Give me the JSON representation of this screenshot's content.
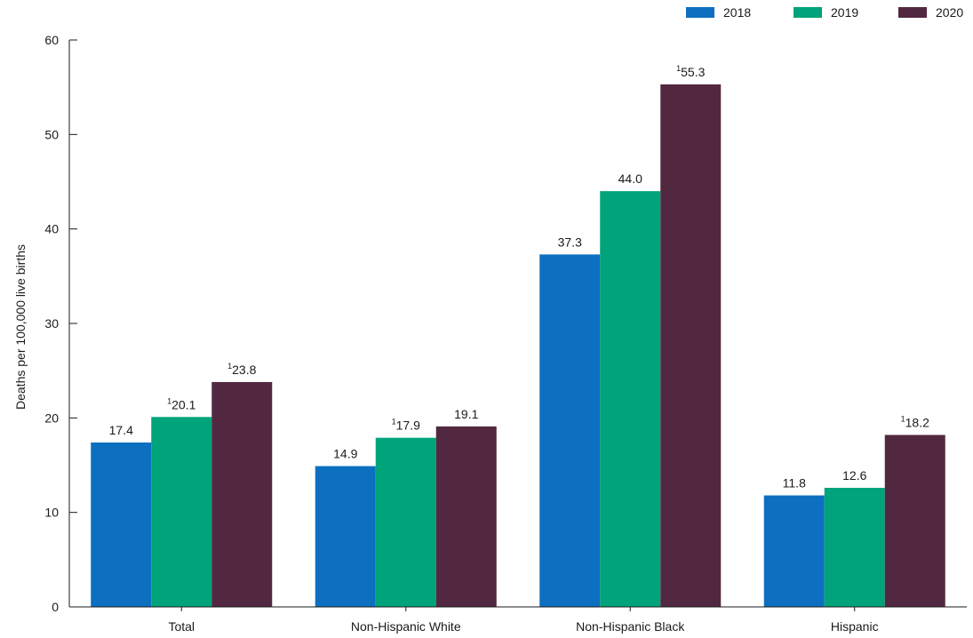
{
  "chart_data": {
    "type": "bar",
    "ylabel": "Deaths per 100,000 live births",
    "ylim": [
      0,
      60
    ],
    "yticks": [
      0,
      10,
      20,
      30,
      40,
      50,
      60
    ],
    "categories": [
      "Total",
      "Non-Hispanic White",
      "Non-Hispanic Black",
      "Hispanic"
    ],
    "legend_placement": "top-right",
    "series": [
      {
        "name": "2018",
        "color": "#0c6fbf",
        "values": [
          17.4,
          14.9,
          37.3,
          11.8
        ],
        "footnotes": [
          "",
          "",
          "",
          ""
        ]
      },
      {
        "name": "2019",
        "color": "#00a37a",
        "values": [
          20.1,
          17.9,
          44.0,
          12.6
        ],
        "footnotes": [
          "1",
          "1",
          "",
          ""
        ]
      },
      {
        "name": "2020",
        "color": "#522840",
        "values": [
          23.8,
          19.1,
          55.3,
          18.2
        ],
        "footnotes": [
          "1",
          "",
          "1",
          "1"
        ]
      }
    ]
  }
}
